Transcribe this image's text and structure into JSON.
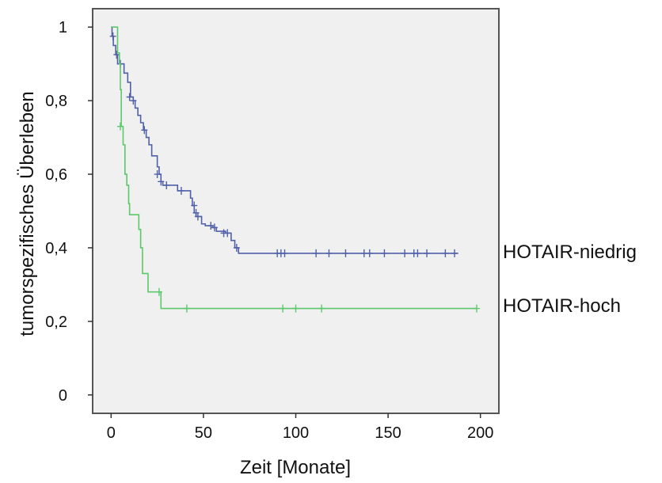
{
  "chart_data": {
    "type": "line",
    "chart_kind": "kaplan-meier step curve",
    "title": "",
    "xlabel": "Zeit [Monate]",
    "ylabel": "tumorspezifisches Überleben",
    "xlim": [
      -10,
      210
    ],
    "ylim": [
      -0.05,
      1.05
    ],
    "x_ticks": [
      0,
      50,
      100,
      150,
      200
    ],
    "x_tick_labels": [
      "0",
      "50",
      "100",
      "150",
      "200"
    ],
    "y_ticks": [
      0,
      0.2,
      0.4,
      0.6,
      0.8,
      1
    ],
    "y_tick_labels": [
      "0",
      "0,2",
      "0,4",
      "0,6",
      "0,8",
      "1"
    ],
    "grid": false,
    "background": "#f0f0f0",
    "series": [
      {
        "name": "HOTAIR-niedrig",
        "color": "#5060a8",
        "steps": [
          [
            0,
            1.0
          ],
          [
            0.5,
            0.975
          ],
          [
            1.2,
            0.95
          ],
          [
            2.5,
            0.925
          ],
          [
            3.5,
            0.9
          ],
          [
            7,
            0.875
          ],
          [
            9,
            0.85
          ],
          [
            10.5,
            0.81
          ],
          [
            12,
            0.8
          ],
          [
            13,
            0.78
          ],
          [
            14.5,
            0.76
          ],
          [
            16,
            0.74
          ],
          [
            17.5,
            0.72
          ],
          [
            19,
            0.7
          ],
          [
            20.5,
            0.68
          ],
          [
            22,
            0.65
          ],
          [
            25,
            0.62
          ],
          [
            26,
            0.6
          ],
          [
            27,
            0.58
          ],
          [
            28,
            0.57
          ],
          [
            36,
            0.555
          ],
          [
            43,
            0.535
          ],
          [
            44,
            0.515
          ],
          [
            45,
            0.495
          ],
          [
            46,
            0.485
          ],
          [
            49,
            0.465
          ],
          [
            51,
            0.46
          ],
          [
            55,
            0.455
          ],
          [
            57,
            0.445
          ],
          [
            62,
            0.44
          ],
          [
            65,
            0.42
          ],
          [
            67,
            0.4
          ],
          [
            69,
            0.385
          ]
        ],
        "end_x": 188,
        "censored": [
          [
            1,
            0.975
          ],
          [
            3,
            0.925
          ],
          [
            5,
            0.9
          ],
          [
            10,
            0.81
          ],
          [
            12,
            0.8
          ],
          [
            18,
            0.72
          ],
          [
            25,
            0.6
          ],
          [
            27,
            0.58
          ],
          [
            30,
            0.57
          ],
          [
            38,
            0.555
          ],
          [
            45,
            0.515
          ],
          [
            46,
            0.495
          ],
          [
            47,
            0.485
          ],
          [
            54,
            0.46
          ],
          [
            56,
            0.455
          ],
          [
            61,
            0.44
          ],
          [
            63,
            0.44
          ],
          [
            68,
            0.4
          ],
          [
            90,
            0.385
          ],
          [
            92,
            0.385
          ],
          [
            94,
            0.385
          ],
          [
            111,
            0.385
          ],
          [
            118,
            0.385
          ],
          [
            127,
            0.385
          ],
          [
            137,
            0.385
          ],
          [
            140,
            0.385
          ],
          [
            148,
            0.385
          ],
          [
            159,
            0.385
          ],
          [
            164,
            0.385
          ],
          [
            166,
            0.385
          ],
          [
            171,
            0.385
          ],
          [
            181,
            0.385
          ],
          [
            186,
            0.385
          ]
        ]
      },
      {
        "name": "HOTAIR-hoch",
        "color": "#5cc86c",
        "steps": [
          [
            0,
            1.0
          ],
          [
            3.5,
            0.93
          ],
          [
            4.5,
            0.9
          ],
          [
            5,
            0.83
          ],
          [
            5.5,
            0.73
          ],
          [
            6.5,
            0.68
          ],
          [
            7.5,
            0.6
          ],
          [
            8.5,
            0.57
          ],
          [
            9.5,
            0.52
          ],
          [
            10,
            0.49
          ],
          [
            15,
            0.45
          ],
          [
            16,
            0.4
          ],
          [
            17,
            0.33
          ],
          [
            20,
            0.28
          ],
          [
            27,
            0.235
          ]
        ],
        "end_x": 198,
        "censored": [
          [
            5,
            0.73
          ],
          [
            26,
            0.28
          ],
          [
            41,
            0.235
          ],
          [
            93,
            0.235
          ],
          [
            100,
            0.235
          ],
          [
            114,
            0.235
          ],
          [
            198,
            0.235
          ]
        ]
      }
    ]
  }
}
